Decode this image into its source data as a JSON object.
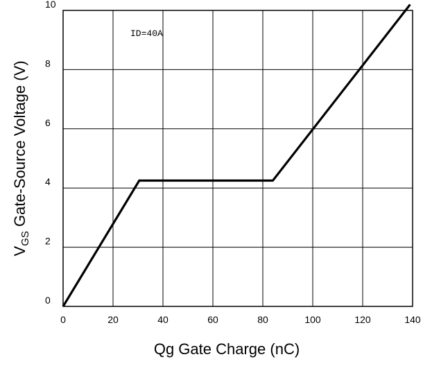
{
  "chart_data": {
    "type": "line",
    "title": "",
    "annotation": "ID=40A",
    "xlabel": "Qg Gate Charge (nC)",
    "ylabel": {
      "prefix": "V",
      "subscript": "GS",
      "suffix": " Gate-Source Voltage (V)"
    },
    "xlim": [
      0,
      140
    ],
    "ylim": [
      0,
      10
    ],
    "xticks": [
      0,
      20,
      40,
      60,
      80,
      100,
      120,
      140
    ],
    "yticks": [
      0,
      2,
      4,
      6,
      8,
      10
    ],
    "grid": true,
    "series": [
      {
        "x": [
          0,
          30.5,
          84,
          139
        ],
        "y": [
          0,
          4.25,
          4.25,
          10.2
        ]
      }
    ]
  }
}
